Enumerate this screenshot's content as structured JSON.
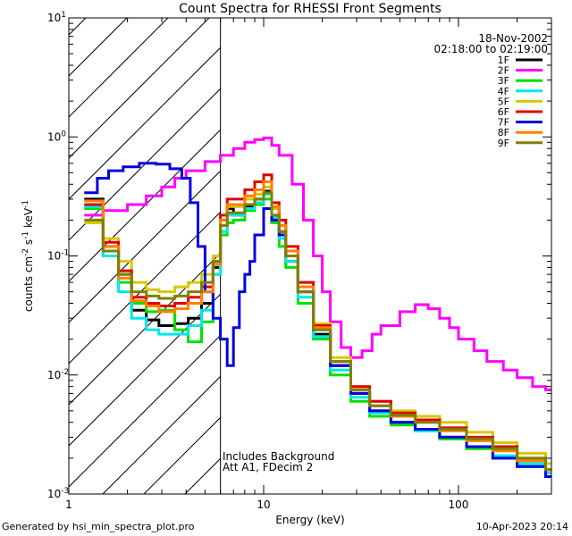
{
  "chart_data": {
    "type": "line",
    "title": "Count Spectra for RHESSI Front Segments",
    "xlabel": "Energy (keV)",
    "ylabel_parts": [
      "counts cm",
      "-2",
      " s",
      "-1",
      " keV",
      "-1"
    ],
    "xscale": "log",
    "yscale": "log",
    "xlim": [
      1,
      300
    ],
    "ylim": [
      0.001,
      10
    ],
    "x_tick_labels": [
      "1",
      "10",
      "100"
    ],
    "y_tick_labels": [
      {
        "base": "10",
        "exp": "-3"
      },
      {
        "base": "10",
        "exp": "-2"
      },
      {
        "base": "10",
        "exp": "-1"
      },
      {
        "base": "10",
        "exp": "0"
      },
      {
        "base": "10",
        "exp": "1"
      }
    ],
    "date": "18-Nov-2002",
    "time_range": "02:18:00 to 02:19:00",
    "attenuator_boundary_keV": 6,
    "annotations": [
      "Includes Background",
      "Att A1, FDecim 2"
    ],
    "legend_position": "top-right",
    "series": [
      {
        "name": "1F",
        "color": "#000000",
        "points": [
          [
            1.2,
            0.3
          ],
          [
            1.5,
            0.12
          ],
          [
            1.8,
            0.07
          ],
          [
            2.1,
            0.035
          ],
          [
            2.5,
            0.029
          ],
          [
            2.9,
            0.026
          ],
          [
            3.5,
            0.027
          ],
          [
            4.1,
            0.03
          ],
          [
            4.8,
            0.04
          ],
          [
            5.5,
            0.08
          ],
          [
            6,
            0.18
          ],
          [
            6.5,
            0.25
          ],
          [
            7,
            0.22
          ],
          [
            8,
            0.26
          ],
          [
            9,
            0.3
          ],
          [
            10,
            0.35
          ],
          [
            11,
            0.22
          ],
          [
            12,
            0.16
          ],
          [
            13,
            0.09
          ],
          [
            15,
            0.05
          ],
          [
            18,
            0.022
          ],
          [
            22,
            0.012
          ],
          [
            28,
            0.007
          ],
          [
            35,
            0.005
          ],
          [
            45,
            0.004
          ],
          [
            60,
            0.0035
          ],
          [
            80,
            0.003
          ],
          [
            110,
            0.0025
          ],
          [
            150,
            0.002
          ],
          [
            200,
            0.0018
          ],
          [
            280,
            0.0015
          ]
        ]
      },
      {
        "name": "2F",
        "color": "#ff00ff",
        "points": [
          [
            1.2,
            0.22
          ],
          [
            1.5,
            0.24
          ],
          [
            2,
            0.27
          ],
          [
            2.5,
            0.32
          ],
          [
            3,
            0.38
          ],
          [
            3.5,
            0.45
          ],
          [
            4,
            0.52
          ],
          [
            5,
            0.62
          ],
          [
            6,
            0.7
          ],
          [
            7,
            0.8
          ],
          [
            8,
            0.9
          ],
          [
            9,
            0.95
          ],
          [
            10,
            0.98
          ],
          [
            11,
            0.85
          ],
          [
            12,
            0.7
          ],
          [
            14,
            0.4
          ],
          [
            16,
            0.2
          ],
          [
            18,
            0.1
          ],
          [
            20,
            0.05
          ],
          [
            22,
            0.028
          ],
          [
            25,
            0.017
          ],
          [
            28,
            0.014
          ],
          [
            32,
            0.016
          ],
          [
            36,
            0.022
          ],
          [
            40,
            0.026
          ],
          [
            50,
            0.034
          ],
          [
            60,
            0.039
          ],
          [
            70,
            0.036
          ],
          [
            80,
            0.03
          ],
          [
            90,
            0.025
          ],
          [
            100,
            0.02
          ],
          [
            120,
            0.016
          ],
          [
            140,
            0.013
          ],
          [
            170,
            0.011
          ],
          [
            200,
            0.0095
          ],
          [
            240,
            0.008
          ],
          [
            280,
            0.0075
          ]
        ]
      },
      {
        "name": "3F",
        "color": "#00e000",
        "points": [
          [
            1.2,
            0.25
          ],
          [
            1.5,
            0.11
          ],
          [
            1.8,
            0.06
          ],
          [
            2.1,
            0.04
          ],
          [
            2.5,
            0.034
          ],
          [
            2.9,
            0.035
          ],
          [
            3.5,
            0.024
          ],
          [
            4.1,
            0.019
          ],
          [
            4.8,
            0.028
          ],
          [
            5.5,
            0.07
          ],
          [
            6,
            0.15
          ],
          [
            6.5,
            0.19
          ],
          [
            7,
            0.2
          ],
          [
            8,
            0.24
          ],
          [
            9,
            0.27
          ],
          [
            10,
            0.3
          ],
          [
            11,
            0.19
          ],
          [
            12,
            0.12
          ],
          [
            13,
            0.08
          ],
          [
            15,
            0.04
          ],
          [
            18,
            0.02
          ],
          [
            22,
            0.01
          ],
          [
            28,
            0.006
          ],
          [
            35,
            0.0045
          ],
          [
            45,
            0.0038
          ],
          [
            60,
            0.0034
          ],
          [
            80,
            0.0029
          ],
          [
            110,
            0.0024
          ],
          [
            150,
            0.002
          ],
          [
            200,
            0.0017
          ],
          [
            280,
            0.0014
          ]
        ]
      },
      {
        "name": "4F",
        "color": "#00e8e8",
        "points": [
          [
            1.2,
            0.26
          ],
          [
            1.5,
            0.1
          ],
          [
            1.8,
            0.05
          ],
          [
            2.1,
            0.03
          ],
          [
            2.5,
            0.024
          ],
          [
            2.9,
            0.022
          ],
          [
            3.5,
            0.022
          ],
          [
            4.1,
            0.026
          ],
          [
            4.8,
            0.035
          ],
          [
            5.5,
            0.07
          ],
          [
            6,
            0.16
          ],
          [
            6.5,
            0.22
          ],
          [
            7,
            0.22
          ],
          [
            8,
            0.25
          ],
          [
            9,
            0.28
          ],
          [
            10,
            0.33
          ],
          [
            11,
            0.21
          ],
          [
            12,
            0.14
          ],
          [
            13,
            0.09
          ],
          [
            15,
            0.045
          ],
          [
            18,
            0.021
          ],
          [
            22,
            0.011
          ],
          [
            28,
            0.0065
          ],
          [
            35,
            0.0048
          ],
          [
            45,
            0.004
          ],
          [
            60,
            0.0034
          ],
          [
            80,
            0.003
          ],
          [
            110,
            0.0025
          ],
          [
            150,
            0.0021
          ],
          [
            200,
            0.0018
          ],
          [
            280,
            0.0015
          ]
        ]
      },
      {
        "name": "5F",
        "color": "#d8c800",
        "points": [
          [
            1.2,
            0.19
          ],
          [
            1.5,
            0.14
          ],
          [
            1.8,
            0.09
          ],
          [
            2.1,
            0.06
          ],
          [
            2.5,
            0.052
          ],
          [
            2.9,
            0.05
          ],
          [
            3.5,
            0.055
          ],
          [
            4.1,
            0.06
          ],
          [
            4.8,
            0.07
          ],
          [
            5.5,
            0.1
          ],
          [
            6,
            0.2
          ],
          [
            6.5,
            0.26
          ],
          [
            7,
            0.26
          ],
          [
            8,
            0.3
          ],
          [
            9,
            0.33
          ],
          [
            10,
            0.38
          ],
          [
            11,
            0.25
          ],
          [
            12,
            0.18
          ],
          [
            13,
            0.11
          ],
          [
            15,
            0.06
          ],
          [
            18,
            0.027
          ],
          [
            22,
            0.014
          ],
          [
            28,
            0.008
          ],
          [
            35,
            0.006
          ],
          [
            45,
            0.005
          ],
          [
            60,
            0.0045
          ],
          [
            80,
            0.004
          ],
          [
            110,
            0.0033
          ],
          [
            150,
            0.0027
          ],
          [
            200,
            0.0022
          ],
          [
            280,
            0.0018
          ]
        ]
      },
      {
        "name": "6F",
        "color": "#e00000",
        "points": [
          [
            1.2,
            0.27
          ],
          [
            1.5,
            0.13
          ],
          [
            1.8,
            0.075
          ],
          [
            2.1,
            0.045
          ],
          [
            2.5,
            0.04
          ],
          [
            2.9,
            0.038
          ],
          [
            3.5,
            0.04
          ],
          [
            4.1,
            0.045
          ],
          [
            4.8,
            0.055
          ],
          [
            5.5,
            0.09
          ],
          [
            6,
            0.22
          ],
          [
            6.5,
            0.3
          ],
          [
            7,
            0.3
          ],
          [
            8,
            0.36
          ],
          [
            9,
            0.42
          ],
          [
            10,
            0.48
          ],
          [
            11,
            0.28
          ],
          [
            12,
            0.2
          ],
          [
            13,
            0.12
          ],
          [
            15,
            0.06
          ],
          [
            18,
            0.026
          ],
          [
            22,
            0.013
          ],
          [
            28,
            0.008
          ],
          [
            35,
            0.006
          ],
          [
            45,
            0.0048
          ],
          [
            60,
            0.0042
          ],
          [
            80,
            0.0036
          ],
          [
            110,
            0.003
          ],
          [
            150,
            0.0025
          ],
          [
            200,
            0.002
          ],
          [
            280,
            0.0016
          ]
        ]
      },
      {
        "name": "7F",
        "color": "#0000e0",
        "points": [
          [
            1.2,
            0.34
          ],
          [
            1.4,
            0.45
          ],
          [
            1.6,
            0.52
          ],
          [
            1.9,
            0.56
          ],
          [
            2.3,
            0.6
          ],
          [
            2.8,
            0.59
          ],
          [
            3.3,
            0.54
          ],
          [
            3.8,
            0.45
          ],
          [
            4.2,
            0.28
          ],
          [
            4.6,
            0.12
          ],
          [
            5,
            0.05
          ],
          [
            5.5,
            0.03
          ],
          [
            6,
            0.02
          ],
          [
            6.5,
            0.012
          ],
          [
            7,
            0.025
          ],
          [
            7.5,
            0.05
          ],
          [
            8,
            0.07
          ],
          [
            8.5,
            0.09
          ],
          [
            9,
            0.15
          ],
          [
            10,
            0.25
          ],
          [
            11,
            0.2
          ],
          [
            12,
            0.15
          ],
          [
            13,
            0.1
          ],
          [
            15,
            0.05
          ],
          [
            18,
            0.024
          ],
          [
            22,
            0.012
          ],
          [
            28,
            0.007
          ],
          [
            35,
            0.005
          ],
          [
            45,
            0.004
          ],
          [
            60,
            0.0035
          ],
          [
            80,
            0.003
          ],
          [
            110,
            0.0025
          ],
          [
            150,
            0.002
          ],
          [
            200,
            0.0017
          ],
          [
            280,
            0.0014
          ]
        ]
      },
      {
        "name": "8F",
        "color": "#ff8000",
        "points": [
          [
            1.2,
            0.29
          ],
          [
            1.5,
            0.12
          ],
          [
            1.8,
            0.065
          ],
          [
            2.1,
            0.042
          ],
          [
            2.5,
            0.038
          ],
          [
            2.9,
            0.034
          ],
          [
            3.5,
            0.036
          ],
          [
            4.1,
            0.04
          ],
          [
            4.8,
            0.05
          ],
          [
            5.5,
            0.085
          ],
          [
            6,
            0.2
          ],
          [
            6.5,
            0.27
          ],
          [
            7,
            0.27
          ],
          [
            8,
            0.32
          ],
          [
            9,
            0.36
          ],
          [
            10,
            0.42
          ],
          [
            11,
            0.26
          ],
          [
            12,
            0.18
          ],
          [
            13,
            0.11
          ],
          [
            15,
            0.055
          ],
          [
            18,
            0.025
          ],
          [
            22,
            0.013
          ],
          [
            28,
            0.0075
          ],
          [
            35,
            0.0055
          ],
          [
            45,
            0.0045
          ],
          [
            60,
            0.004
          ],
          [
            80,
            0.0034
          ],
          [
            110,
            0.0028
          ],
          [
            150,
            0.0023
          ],
          [
            200,
            0.0019
          ],
          [
            280,
            0.0016
          ]
        ]
      },
      {
        "name": "9F",
        "color": "#808000",
        "points": [
          [
            1.2,
            0.2
          ],
          [
            1.5,
            0.11
          ],
          [
            1.8,
            0.07
          ],
          [
            2.1,
            0.05
          ],
          [
            2.5,
            0.046
          ],
          [
            2.9,
            0.044
          ],
          [
            3.5,
            0.046
          ],
          [
            4.1,
            0.05
          ],
          [
            4.8,
            0.06
          ],
          [
            5.5,
            0.09
          ],
          [
            6,
            0.18
          ],
          [
            6.5,
            0.23
          ],
          [
            7,
            0.23
          ],
          [
            8,
            0.27
          ],
          [
            9,
            0.3
          ],
          [
            10,
            0.34
          ],
          [
            11,
            0.22
          ],
          [
            12,
            0.16
          ],
          [
            13,
            0.1
          ],
          [
            15,
            0.05
          ],
          [
            18,
            0.024
          ],
          [
            22,
            0.013
          ],
          [
            28,
            0.0075
          ],
          [
            35,
            0.0055
          ],
          [
            45,
            0.0046
          ],
          [
            60,
            0.004
          ],
          [
            80,
            0.0035
          ],
          [
            110,
            0.0029
          ],
          [
            150,
            0.0024
          ],
          [
            200,
            0.002
          ],
          [
            280,
            0.0016
          ]
        ]
      }
    ]
  },
  "footer": {
    "left": "Generated by hsi_min_spectra_plot.pro",
    "right": "10-Apr-2023 20:14"
  }
}
